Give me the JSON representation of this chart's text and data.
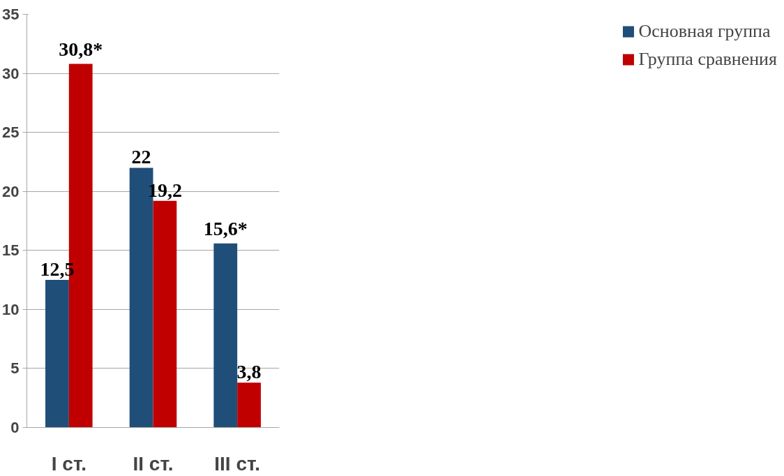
{
  "chart_data": {
    "type": "bar",
    "categories": [
      "I ст.",
      "II ст.",
      "III ст."
    ],
    "series": [
      {
        "name": "Основная группа",
        "color": "#1f4e79",
        "values": [
          12.5,
          22,
          15.6
        ],
        "value_labels": [
          "12,5",
          "22",
          "15,6*"
        ]
      },
      {
        "name": "Группа сравнения",
        "color": "#c00000",
        "values": [
          30.8,
          19.2,
          3.8
        ],
        "value_labels": [
          "30,8*",
          "19,2",
          "3,8"
        ]
      }
    ],
    "ylim": [
      0,
      35
    ],
    "yticks": [
      0,
      5,
      10,
      15,
      20,
      25,
      30,
      35
    ],
    "grid": "y",
    "legend": "right"
  }
}
